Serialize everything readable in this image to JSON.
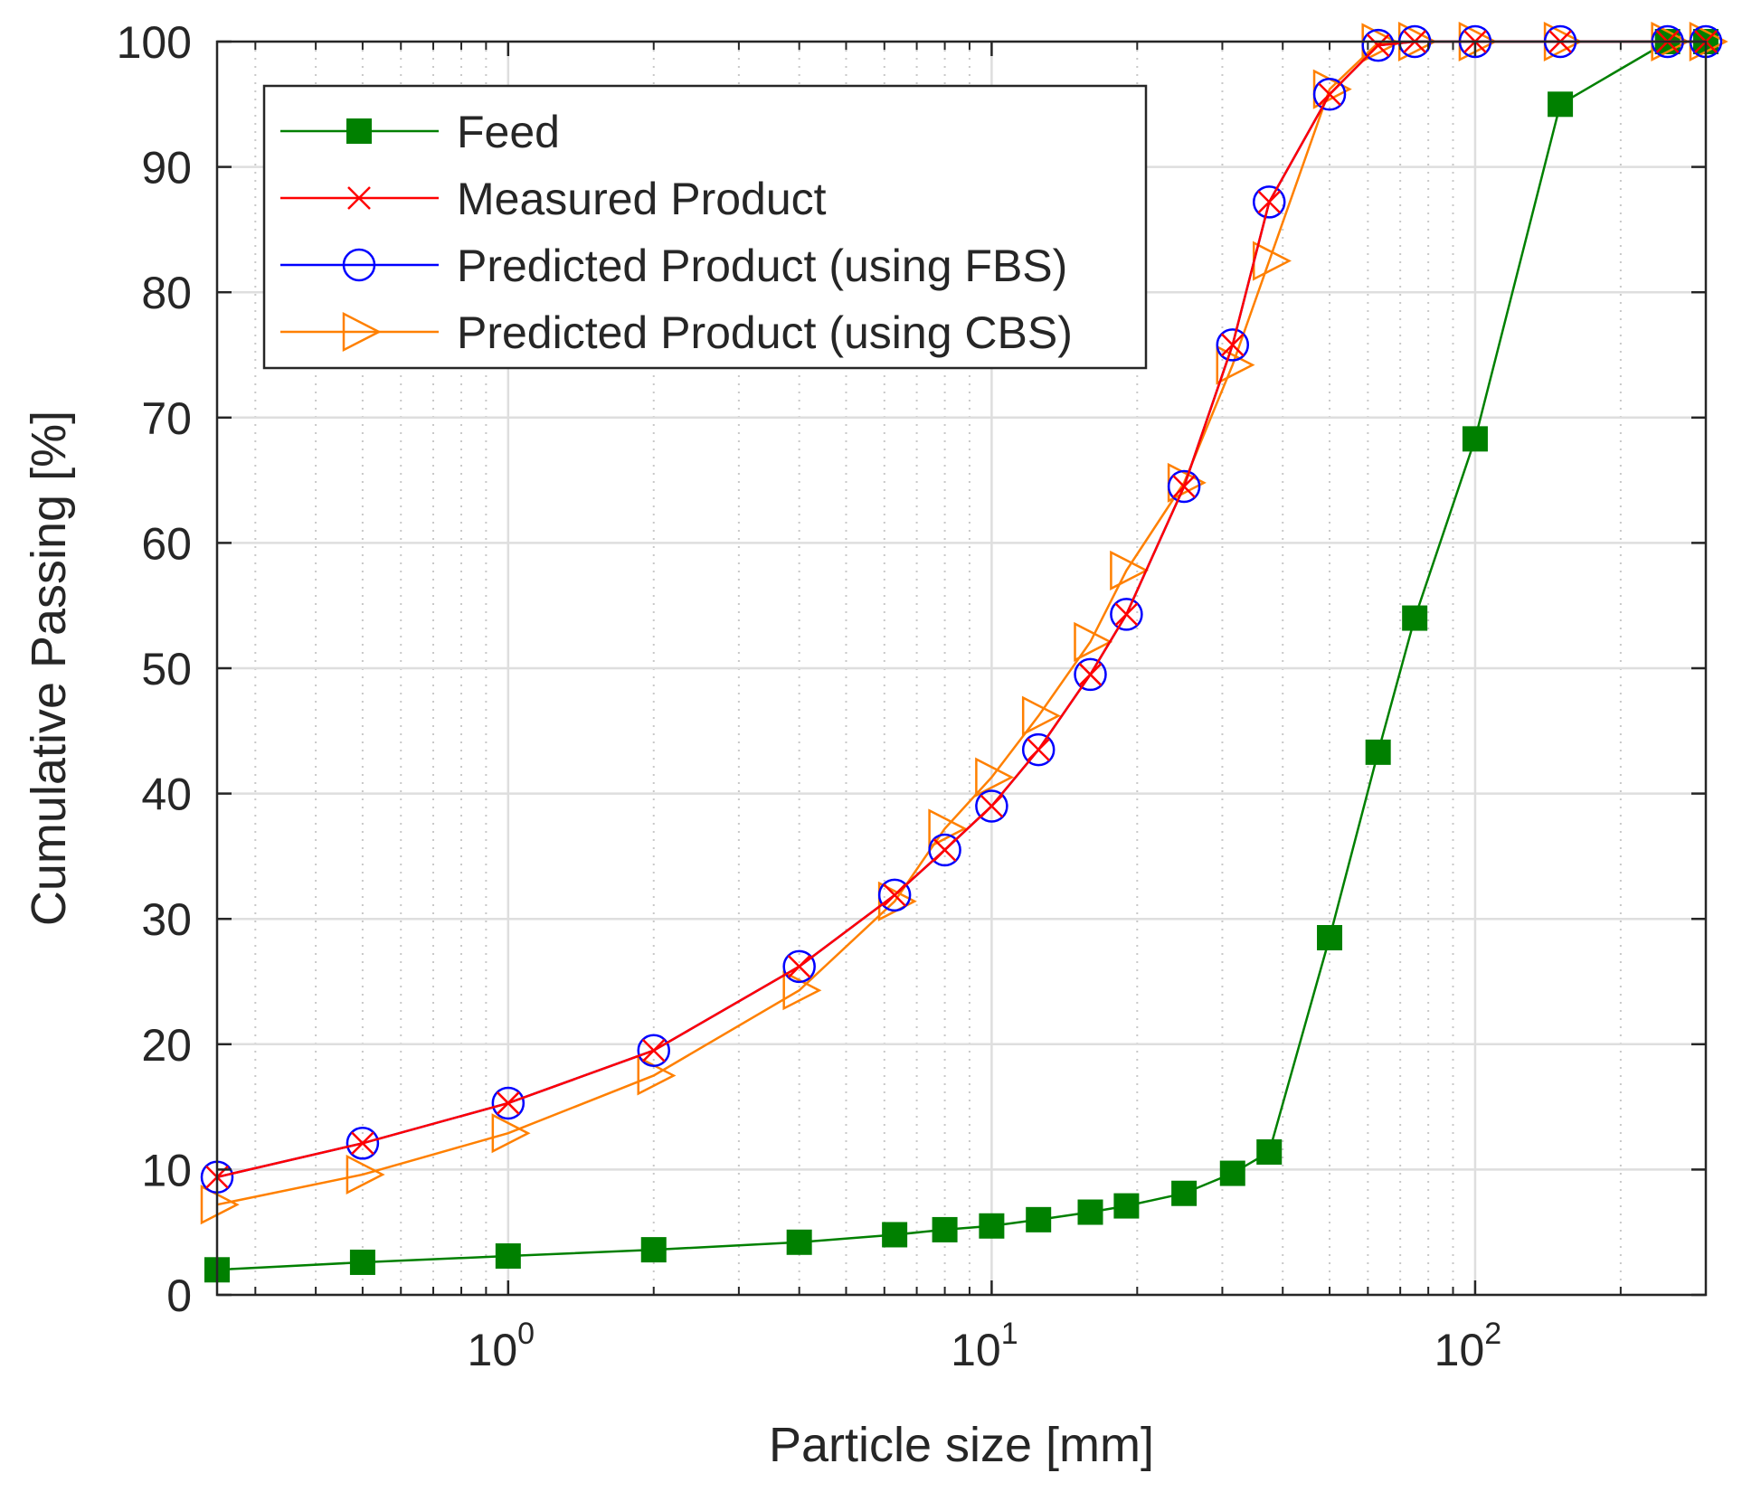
{
  "chart_data": {
    "type": "line",
    "x_scale": "log",
    "xlabel": "Particle size [mm]",
    "ylabel": "Cumulative Passing [%]",
    "xlim": [
      0.25,
      300
    ],
    "ylim": [
      0,
      100
    ],
    "grid": true,
    "legend_position": "top-left",
    "x_ticks": [
      {
        "value": 1,
        "base": "10",
        "exp": "0"
      },
      {
        "value": 10,
        "base": "10",
        "exp": "1"
      },
      {
        "value": 100,
        "base": "10",
        "exp": "2"
      }
    ],
    "y_ticks": [
      "0",
      "10",
      "20",
      "30",
      "40",
      "50",
      "60",
      "70",
      "80",
      "90",
      "100"
    ],
    "series": [
      {
        "name": "Feed",
        "color": "#008000",
        "marker": "square",
        "x": [
          0.25,
          0.5,
          1,
          2,
          4,
          6.3,
          8,
          10,
          12.5,
          16,
          19,
          25,
          31.5,
          37.5,
          50,
          63,
          75,
          100,
          150,
          250,
          300
        ],
        "y": [
          2,
          2.6,
          3.1,
          3.6,
          4.2,
          4.8,
          5.2,
          5.5,
          6,
          6.6,
          7.1,
          8.1,
          9.7,
          11.4,
          28.5,
          43.3,
          54,
          68.3,
          95,
          100,
          100
        ]
      },
      {
        "name": "Measured Product",
        "color": "#ff0000",
        "marker": "x",
        "x": [
          0.25,
          0.5,
          1,
          2,
          4,
          6.3,
          8,
          10,
          12.5,
          16,
          19,
          25,
          31.5,
          37.5,
          50,
          63,
          75,
          100,
          150,
          250,
          300
        ],
        "y": [
          9.4,
          12.1,
          15.3,
          19.5,
          26.2,
          31.9,
          35.5,
          39,
          43.5,
          49.5,
          54.3,
          64.5,
          75.8,
          87.2,
          95.8,
          99.7,
          100,
          100,
          100,
          100,
          100
        ]
      },
      {
        "name": "Predicted Product (using FBS)",
        "color": "#0000ff",
        "marker": "circle",
        "x": [
          0.25,
          0.5,
          1,
          2,
          4,
          6.3,
          8,
          10,
          12.5,
          16,
          19,
          25,
          31.5,
          37.5,
          50,
          63,
          75,
          100,
          150,
          250,
          300
        ],
        "y": [
          9.4,
          12.1,
          15.3,
          19.5,
          26.2,
          31.9,
          35.5,
          39,
          43.5,
          49.5,
          54.3,
          64.5,
          75.8,
          87.2,
          95.8,
          99.7,
          100,
          100,
          100,
          100,
          100
        ]
      },
      {
        "name": "Predicted Product (using CBS)",
        "color": "#ff8000",
        "marker": "triangle-right",
        "x": [
          0.25,
          0.5,
          1,
          2,
          4,
          6.3,
          8,
          10,
          12.5,
          16,
          19,
          25,
          31.5,
          37.5,
          50,
          63,
          75,
          100,
          150,
          250,
          300
        ],
        "y": [
          7.2,
          9.6,
          12.9,
          17.5,
          24.3,
          31.4,
          37.2,
          41.3,
          46.2,
          52.1,
          57.8,
          64.8,
          74.2,
          82.5,
          96.2,
          99.9,
          100,
          100,
          100,
          100,
          100
        ]
      }
    ]
  }
}
